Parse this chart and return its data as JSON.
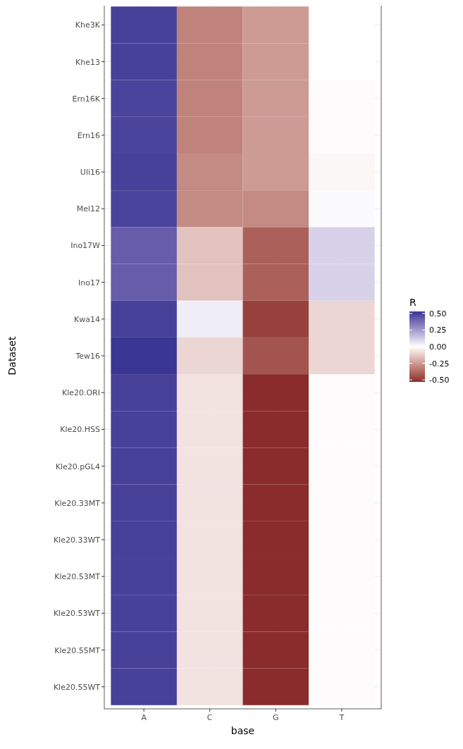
{
  "chart_data": {
    "type": "heatmap",
    "xlabel": "base",
    "ylabel": "Dataset",
    "clabel": "R",
    "grid": true,
    "categories": [
      "A",
      "C",
      "G",
      "T"
    ],
    "y_categories": [
      "Khe3K",
      "Khe13",
      "Ern16K",
      "Ern16",
      "Uli16",
      "Mel12",
      "Ino17W",
      "Ino17",
      "Kwa14",
      "Tew16",
      "Kle20.ORI",
      "Kle20.HSS",
      "Kle20.pGL4",
      "Kle20.33MT",
      "Kle20.33WT",
      "Kle20.53MT",
      "Kle20.53WT",
      "Kle20.55MT",
      "Kle20.55WT"
    ],
    "cells": [
      [
        0.5,
        -0.31,
        -0.25,
        0.0
      ],
      [
        0.5,
        -0.31,
        -0.25,
        0.0
      ],
      [
        0.49,
        -0.31,
        -0.25,
        -0.01
      ],
      [
        0.49,
        -0.31,
        -0.25,
        -0.01
      ],
      [
        0.5,
        -0.29,
        -0.25,
        -0.02
      ],
      [
        0.49,
        -0.29,
        -0.29,
        0.01
      ],
      [
        0.42,
        -0.15,
        -0.4,
        0.11
      ],
      [
        0.42,
        -0.15,
        -0.4,
        0.11
      ],
      [
        0.5,
        0.04,
        -0.48,
        -0.1
      ],
      [
        0.53,
        -0.1,
        -0.43,
        -0.1
      ],
      [
        0.5,
        -0.07,
        -0.53,
        -0.01
      ],
      [
        0.5,
        -0.07,
        -0.53,
        -0.01
      ],
      [
        0.5,
        -0.07,
        -0.53,
        -0.01
      ],
      [
        0.5,
        -0.07,
        -0.53,
        -0.01
      ],
      [
        0.5,
        -0.07,
        -0.53,
        -0.01
      ],
      [
        0.5,
        -0.07,
        -0.53,
        -0.01
      ],
      [
        0.5,
        -0.07,
        -0.53,
        -0.01
      ],
      [
        0.5,
        -0.07,
        -0.53,
        -0.01
      ],
      [
        0.5,
        -0.07,
        -0.53,
        -0.01
      ]
    ],
    "clim": [
      -0.53,
      0.53
    ],
    "cticks": [
      {
        "value": 0.5,
        "label": "0.50"
      },
      {
        "value": 0.25,
        "label": "0.25"
      },
      {
        "value": 0,
        "label": "0.00"
      },
      {
        "value": -0.25,
        "label": "-0.25"
      },
      {
        "value": -0.5,
        "label": "-0.50"
      }
    ]
  }
}
